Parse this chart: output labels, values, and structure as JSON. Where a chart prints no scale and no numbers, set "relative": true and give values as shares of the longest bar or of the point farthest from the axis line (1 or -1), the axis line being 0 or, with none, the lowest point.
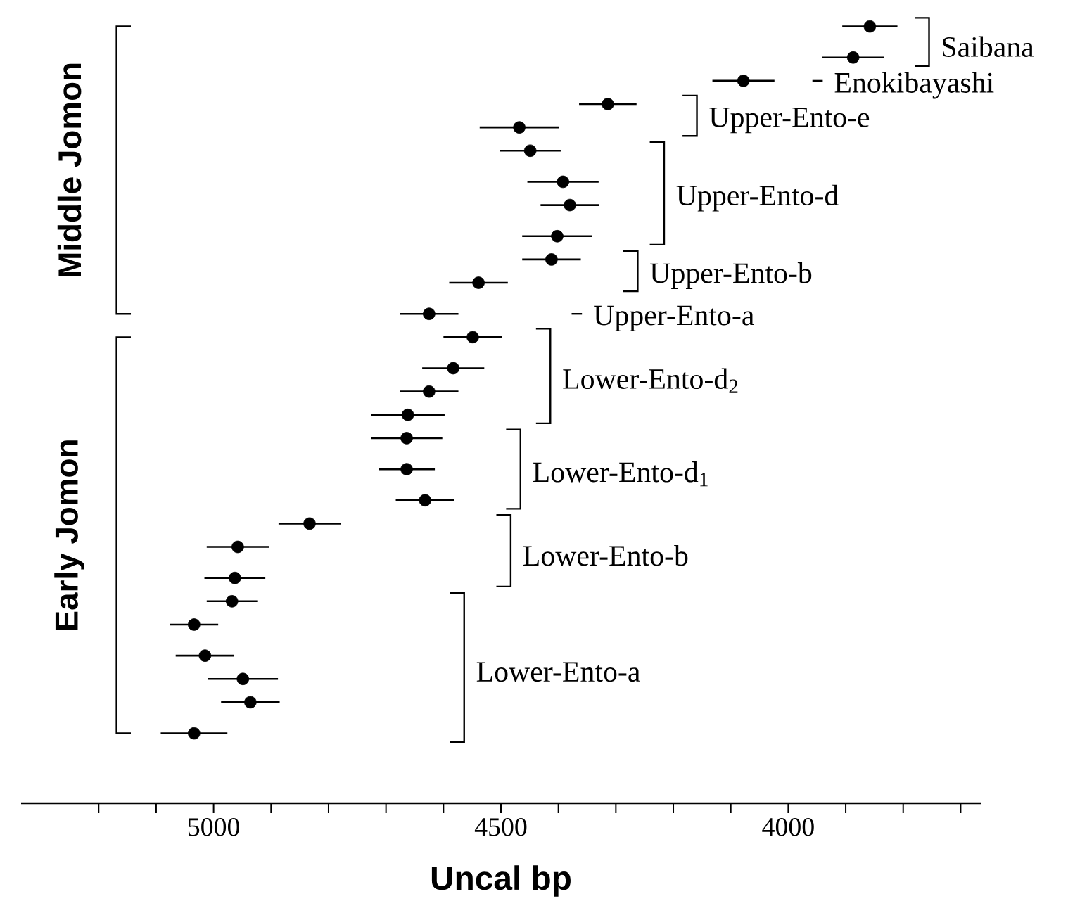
{
  "chart_data": {
    "type": "scatter",
    "relative": true,
    "xlabel": "Uncal bp",
    "tick_labels": "x",
    "marker": "circle",
    "color": "#000000",
    "x": [
      3858,
      3887,
      4078,
      4314,
      4468,
      4449,
      4392,
      4380,
      4402,
      4412,
      4539,
      4625,
      4549,
      4583,
      4625,
      4662,
      4664,
      4664,
      4632,
      4833,
      4958,
      4963,
      4968,
      5034,
      5015,
      4949,
      4936,
      5034
    ],
    "values": [
      1.0,
      0.96,
      0.93,
      0.9,
      0.87,
      0.84,
      0.8,
      0.77,
      0.73,
      0.7,
      0.67,
      0.63,
      0.6,
      0.56,
      0.53,
      0.5,
      0.47,
      0.43,
      0.39,
      0.36,
      0.33,
      0.29,
      0.26,
      0.23,
      0.19,
      0.16,
      0.13,
      0.09
    ],
    "xerrors": [
      48,
      54,
      54,
      50,
      69,
      53,
      62,
      51,
      61,
      51,
      51,
      51,
      51,
      54,
      51,
      64,
      62,
      49,
      51,
      54,
      54,
      53,
      44,
      42,
      51,
      61,
      51,
      58
    ],
    "xlim": [
      5335,
      3665
    ],
    "xticks": [
      {
        "value": 5200,
        "label": null
      },
      {
        "value": 5100,
        "label": null
      },
      5000,
      {
        "value": 4900,
        "label": null
      },
      {
        "value": 4800,
        "label": null
      },
      {
        "value": 4700,
        "label": null
      },
      {
        "value": 4600,
        "label": null
      },
      4500,
      {
        "value": 4400,
        "label": null
      },
      {
        "value": 4300,
        "label": null
      },
      {
        "value": 4200,
        "label": null
      },
      {
        "value": 4100,
        "label": null
      },
      4000,
      {
        "value": 3900,
        "label": null
      },
      {
        "value": 3800,
        "label": null
      },
      {
        "value": 3700,
        "label": null
      }
    ],
    "annotations": [
      "Middle Jomon",
      "Early Jomon",
      "Saibana",
      "Enokibayashi",
      "Upper-Ento-e",
      "Upper-Ento-d",
      "Upper-Ento-b",
      "Upper-Ento-a",
      "Lower-Ento-d$_{2}$",
      "Lower-Ento-d$_{1}$",
      "Lower-Ento-b",
      "Lower-Ento-a"
    ]
  }
}
